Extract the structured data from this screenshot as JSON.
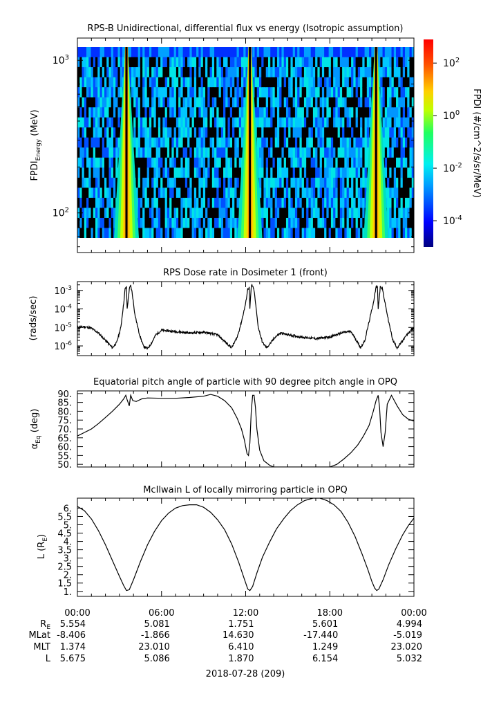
{
  "figure": {
    "date_label": "2018-07-28 (209)"
  },
  "chart_data": [
    {
      "type": "heatmap",
      "title": "RPS-B  Unidirectional, differential flux vs energy (Isotropic assumption)",
      "ylabel_main": "FPDI",
      "ylabel_sub": "Energy",
      "ylabel_unit": "(MeV)",
      "y_log": true,
      "ylim": [
        55,
        1400
      ],
      "ytick_labels": [
        {
          "value": 100,
          "base": "10",
          "exp": "2"
        },
        {
          "value": 1000,
          "base": "10",
          "exp": "3"
        }
      ],
      "x_hours": [
        0,
        24
      ],
      "flux_peaks_hours": [
        3.5,
        12.3,
        21.3
      ],
      "colorbar": {
        "label": "FPDI (#/cm^2/s/sr/MeV)",
        "log": true,
        "range": [
          -5,
          2.9
        ],
        "ticks": [
          {
            "exp": "2",
            "value": 2
          },
          {
            "exp": "0",
            "value": 0
          },
          {
            "exp": "-2",
            "value": -2
          },
          {
            "exp": "-4",
            "value": -4
          }
        ]
      }
    },
    {
      "type": "line",
      "title": "RPS  Dose rate in Dosimeter 1 (front)",
      "ylabel": "(rads/sec)",
      "y_log": true,
      "ylim": [
        3e-07,
        0.003
      ],
      "ytick_labels": [
        {
          "value": 0.001,
          "exp": "-3"
        },
        {
          "value": 0.0001,
          "exp": "-4"
        },
        {
          "value": 1e-05,
          "exp": "-5"
        },
        {
          "value": 1e-06,
          "exp": "-6"
        }
      ],
      "x": [
        0,
        0.5,
        1,
        1.5,
        2,
        2.5,
        2.8,
        3.1,
        3.3,
        3.4,
        3.5,
        3.55,
        3.7,
        3.8,
        3.9,
        4.1,
        4.4,
        4.7,
        5.0,
        5.3,
        5.6,
        6,
        7,
        8,
        9,
        10,
        10.6,
        11.0,
        11.4,
        11.7,
        12.0,
        12.15,
        12.25,
        12.3,
        12.4,
        12.45,
        12.6,
        12.75,
        12.9,
        13.2,
        13.5,
        13.8,
        14.1,
        14.5,
        15,
        16,
        17,
        18,
        19,
        19.5,
        19.9,
        20.2,
        20.5,
        20.8,
        21.1,
        21.3,
        21.4,
        21.45,
        21.6,
        21.75,
        21.9,
        22.2,
        22.5,
        22.8,
        23.1,
        23.5,
        24
      ],
      "y": [
        1e-05,
        1.1e-05,
        9e-06,
        5e-06,
        2e-06,
        8e-07,
        1.5e-06,
        1e-05,
        0.0002,
        0.0012,
        0.0015,
        0.0001,
        0.0012,
        0.0018,
        0.0008,
        5e-05,
        5e-06,
        1e-06,
        7e-07,
        1.5e-06,
        4e-06,
        7e-06,
        6e-06,
        5e-06,
        5.5e-06,
        4e-06,
        1.5e-06,
        8e-07,
        3e-06,
        2e-05,
        0.0002,
        0.0012,
        0.0014,
        0.0001,
        0.0015,
        0.002,
        0.001,
        0.0001,
        1e-05,
        1.5e-06,
        8e-07,
        1.5e-06,
        3e-06,
        5e-06,
        4e-06,
        3e-06,
        2.5e-06,
        3e-06,
        5.5e-06,
        6e-06,
        2e-06,
        8e-07,
        2e-06,
        2e-05,
        0.0002,
        0.0015,
        0.0018,
        0.0001,
        0.0016,
        0.0012,
        0.0003,
        2e-05,
        2e-06,
        8e-07,
        1.5e-06,
        4e-06,
        1e-05
      ]
    },
    {
      "type": "line",
      "title": "Equatorial pitch angle of particle with 90 degree pitch angle in OPQ",
      "ylabel": "α",
      "ylabel_sub": "Eq",
      "ylabel_unit": "(deg)",
      "ylim": [
        48.5,
        91.5
      ],
      "yticks": [
        90,
        85,
        80,
        75,
        70,
        65,
        60,
        55,
        50
      ],
      "ytick_labels": [
        "90.",
        "85.",
        "80.",
        "75.",
        "70.",
        "65.",
        "60.",
        "55.",
        "50."
      ],
      "x": [
        0,
        0.5,
        1,
        1.5,
        2,
        2.5,
        3,
        3.3,
        3.45,
        3.55,
        3.7,
        3.8,
        3.95,
        4.2,
        4.6,
        5,
        6,
        7,
        8,
        9,
        9.5,
        10,
        10.5,
        11,
        11.4,
        11.7,
        11.9,
        12.0,
        12.1,
        12.2,
        12.3,
        12.4,
        12.5,
        12.6,
        12.7,
        12.8,
        13.0,
        13.3,
        13.7,
        14.0,
        18.0,
        18.5,
        19,
        19.5,
        20,
        20.4,
        20.8,
        21.1,
        21.3,
        21.45,
        21.55,
        21.65,
        21.8,
        21.95,
        22.1,
        22.4,
        22.8,
        23.2,
        23.6,
        24
      ],
      "y": [
        66,
        68,
        70,
        73,
        76.5,
        80,
        84,
        87,
        89,
        86.5,
        83,
        89,
        86,
        85.5,
        87,
        87.5,
        87.3,
        87.3,
        87.8,
        88.5,
        89.5,
        88.5,
        86,
        82,
        76,
        70,
        64,
        60,
        56,
        55,
        62,
        80,
        89,
        89,
        82,
        70,
        58,
        52,
        49.5,
        48.5,
        48.5,
        50,
        53,
        56.5,
        61,
        66,
        72,
        80,
        86,
        89,
        82,
        68,
        60,
        68,
        84,
        89,
        83,
        78,
        75.5,
        74.5
      ]
    },
    {
      "type": "line",
      "title": "McIlwain L of locally mirroring particle in OPQ",
      "ylabel": "L (R",
      "ylabel_sub": "E",
      "ylabel_unit": ")",
      "ylim": [
        0.7,
        6.6
      ],
      "yticks": [
        1,
        1.5,
        2,
        2.5,
        3,
        3.5,
        4,
        4.5,
        5,
        5.5,
        6
      ],
      "ytick_labels": [
        "1.",
        "1.5",
        "2.",
        "2.5",
        "3.",
        "3.5",
        "4.",
        "4.5",
        "5.",
        "5.5",
        "6."
      ],
      "x": [
        0,
        0.5,
        1,
        1.5,
        2,
        2.5,
        3,
        3.3,
        3.5,
        3.7,
        4.0,
        4.5,
        5,
        5.5,
        6,
        6.5,
        7,
        7.5,
        8,
        8.5,
        9,
        9.5,
        10,
        10.5,
        11,
        11.5,
        11.9,
        12.15,
        12.3,
        12.5,
        12.8,
        13.2,
        13.7,
        14.2,
        14.7,
        15.2,
        15.7,
        16.2,
        16.8,
        17.3,
        17.8,
        18.3,
        18.8,
        19.3,
        19.8,
        20.3,
        20.7,
        21.0,
        21.2,
        21.35,
        21.5,
        21.8,
        22.2,
        22.7,
        23.2,
        23.6,
        24
      ],
      "y": [
        6.1,
        5.85,
        5.35,
        4.65,
        3.8,
        2.85,
        1.9,
        1.35,
        1.05,
        1.1,
        1.7,
        2.8,
        3.8,
        4.6,
        5.25,
        5.7,
        6.0,
        6.15,
        6.2,
        6.2,
        6.05,
        5.75,
        5.3,
        4.7,
        3.85,
        2.75,
        1.75,
        1.15,
        1.05,
        1.3,
        2.1,
        3.05,
        3.95,
        4.75,
        5.35,
        5.85,
        6.2,
        6.45,
        6.6,
        6.6,
        6.45,
        6.2,
        5.8,
        5.15,
        4.3,
        3.25,
        2.35,
        1.6,
        1.2,
        1.05,
        1.15,
        1.7,
        2.6,
        3.55,
        4.4,
        4.95,
        5.4
      ]
    }
  ],
  "x_axis": {
    "tick_labels": [
      "00:00",
      "06:00",
      "12:00",
      "18:00",
      "00:00"
    ],
    "tick_hours": [
      0,
      6,
      12,
      18,
      24
    ]
  },
  "ephemeris": {
    "rows": [
      {
        "label": "R",
        "label_sub": "E",
        "values": [
          "5.554",
          "5.081",
          "1.751",
          "5.601",
          "4.994"
        ]
      },
      {
        "label": "MLat",
        "label_sub": "",
        "values": [
          "-8.406",
          "-1.866",
          "14.630",
          "-17.440",
          "-5.019"
        ]
      },
      {
        "label": "MLT",
        "label_sub": "",
        "values": [
          "1.374",
          "23.010",
          "6.410",
          "1.249",
          "23.020"
        ]
      },
      {
        "label": "L",
        "label_sub": "",
        "values": [
          "5.675",
          "5.086",
          "1.870",
          "6.154",
          "5.032"
        ]
      }
    ]
  }
}
